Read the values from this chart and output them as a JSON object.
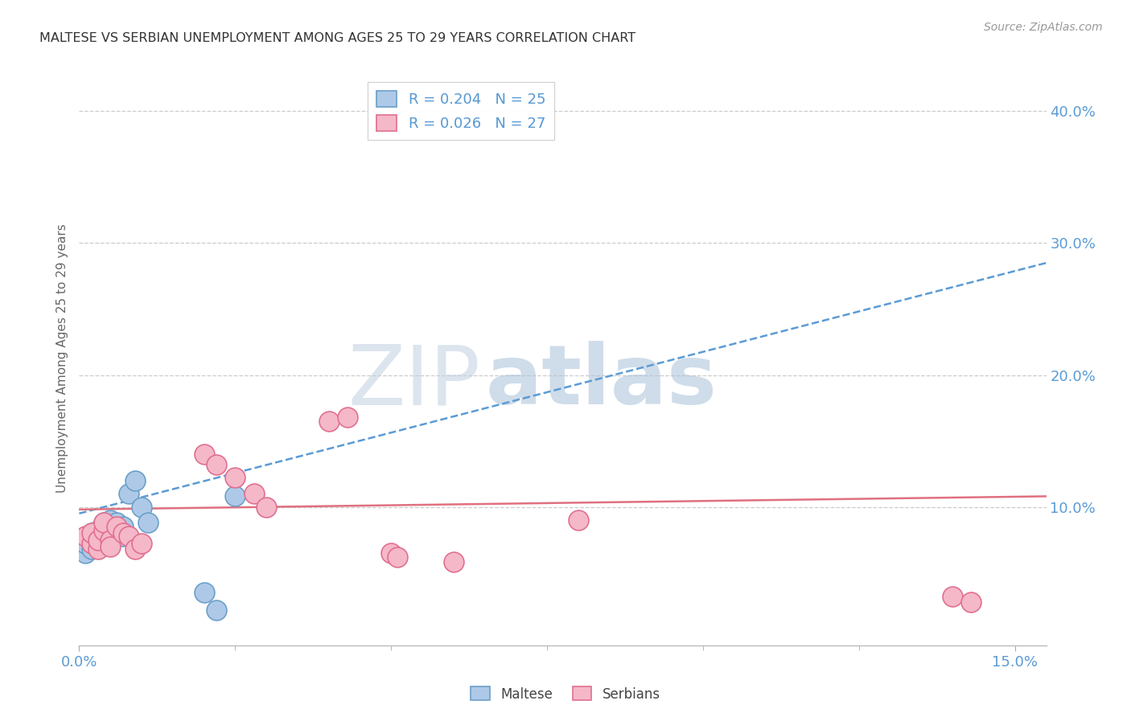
{
  "title": "MALTESE VS SERBIAN UNEMPLOYMENT AMONG AGES 25 TO 29 YEARS CORRELATION CHART",
  "source": "Source: ZipAtlas.com",
  "ylabel": "Unemployment Among Ages 25 to 29 years",
  "xlim": [
    0.0,
    0.155
  ],
  "ylim": [
    -0.005,
    0.43
  ],
  "xtick_major": [
    0.0,
    0.15
  ],
  "xticklabels": [
    "0.0%",
    "15.0%"
  ],
  "xtick_minor": [
    0.025,
    0.05,
    0.075,
    0.1,
    0.125
  ],
  "ytick_right_vals": [
    0.1,
    0.2,
    0.3,
    0.4
  ],
  "ytick_right_labels": [
    "10.0%",
    "20.0%",
    "30.0%",
    "40.0%"
  ],
  "grid_color": "#cccccc",
  "bg_color": "#ffffff",
  "maltese_fc": "#aec9e8",
  "maltese_ec": "#6ca0c8",
  "serbian_fc": "#f5b8c8",
  "serbian_ec": "#e07090",
  "maltese_trend_color": "#5b9bd5",
  "serbian_trend_color": "#e07080",
  "title_color": "#333333",
  "axis_tick_color": "#5b9bd5",
  "legend_box_color": "#bbbbbb",
  "maltese_label": "Maltese",
  "serbian_label": "Serbians",
  "legend_r1": "R = 0.204",
  "legend_n1": "N = 25",
  "legend_r2": "R = 0.026",
  "legend_n2": "N = 27",
  "watermark_zip": "ZIP",
  "watermark_atlas": "atlas",
  "watermark_zip_color": "#c0cfe0",
  "watermark_atlas_color": "#a8c0d8",
  "maltese_x": [
    0.001,
    0.001,
    0.002,
    0.002,
    0.002,
    0.003,
    0.003,
    0.003,
    0.004,
    0.004,
    0.004,
    0.005,
    0.005,
    0.005,
    0.006,
    0.006,
    0.007,
    0.007,
    0.008,
    0.009,
    0.01,
    0.011,
    0.02,
    0.022,
    0.025
  ],
  "maltese_y": [
    0.065,
    0.072,
    0.068,
    0.075,
    0.08,
    0.07,
    0.075,
    0.082,
    0.072,
    0.08,
    0.088,
    0.075,
    0.082,
    0.09,
    0.08,
    0.088,
    0.078,
    0.085,
    0.11,
    0.12,
    0.1,
    0.088,
    0.035,
    0.022,
    0.108
  ],
  "serbian_x": [
    0.001,
    0.002,
    0.002,
    0.003,
    0.003,
    0.004,
    0.004,
    0.005,
    0.005,
    0.006,
    0.007,
    0.008,
    0.009,
    0.01,
    0.04,
    0.043,
    0.02,
    0.022,
    0.025,
    0.028,
    0.03,
    0.05,
    0.051,
    0.06,
    0.08,
    0.14,
    0.143
  ],
  "serbian_y": [
    0.078,
    0.072,
    0.08,
    0.068,
    0.075,
    0.082,
    0.088,
    0.075,
    0.07,
    0.085,
    0.08,
    0.078,
    0.068,
    0.072,
    0.165,
    0.168,
    0.14,
    0.132,
    0.122,
    0.11,
    0.1,
    0.065,
    0.062,
    0.058,
    0.09,
    0.032,
    0.028
  ],
  "maltese_trend_x0": 0.0,
  "maltese_trend_y0": 0.095,
  "maltese_trend_x1": 0.155,
  "maltese_trend_y1": 0.285,
  "serbian_trend_x0": 0.0,
  "serbian_trend_y0": 0.098,
  "serbian_trend_x1": 0.155,
  "serbian_trend_y1": 0.108
}
